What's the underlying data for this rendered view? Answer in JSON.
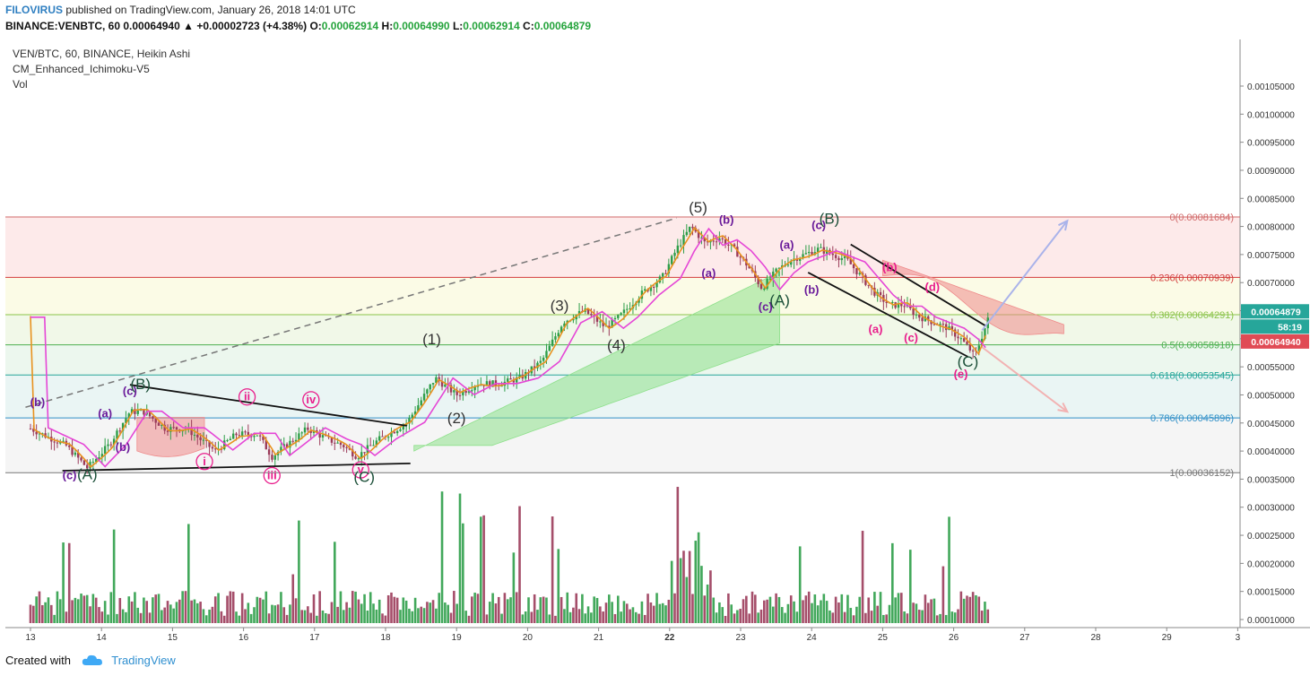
{
  "header": {
    "author": "FILOVIRUS",
    "published": "published on TradingView.com, January 26, 2018 14:01 UTC",
    "symbol": "BINANCE:VENBTC, 60",
    "price": "0.00064940",
    "change": "▲ +0.00002723 (+4.38%)",
    "o_label": "O:",
    "o_value": "0.00062914",
    "h_label": "H:",
    "h_value": "0.00064990",
    "l_label": "L:",
    "l_value": "0.00062914",
    "c_label": "C:",
    "c_value": "0.00064879"
  },
  "legend": {
    "line1": "VEN/BTC, 60, BINANCE, Heikin Ashi",
    "line2": "CM_Enhanced_Ichimoku-V5",
    "line3": "Vol"
  },
  "footer": {
    "created": "Created with",
    "brand": "TradingView"
  },
  "colors": {
    "up": "#2e9e49",
    "down": "#9b3b5a",
    "tenkan": "#e8921f",
    "kijun": "#e546d6",
    "cloud_bull": "#8ee08b",
    "cloud_bear": "#ef8a8a",
    "price_tag": "#e04b55",
    "close_tag": "#26a69a"
  },
  "chart_data": {
    "type": "candlestick",
    "title": "VEN/BTC, 60, BINANCE, Heikin Ashi",
    "x_ticks": [
      "13",
      "14",
      "15",
      "16",
      "17",
      "18",
      "19",
      "20",
      "21",
      "22",
      "23",
      "24",
      "25",
      "26",
      "27",
      "28",
      "29",
      "3"
    ],
    "y_ticks": [
      "0.00105000",
      "0.00100000",
      "0.00095000",
      "0.00090000",
      "0.00085000",
      "0.00080000",
      "0.00075000",
      "0.00070000",
      "0.00065000",
      "0.00060000",
      "0.00055000",
      "0.00050000",
      "0.00045000",
      "0.00040000",
      "0.00035000",
      "0.00030000",
      "0.00025000",
      "0.00020000",
      "0.00015000",
      "0.00010000"
    ],
    "price_path": [
      [
        "13.0",
        0.00044
      ],
      [
        "13.5",
        0.00041
      ],
      [
        "13.8",
        0.00037
      ],
      [
        "14.1",
        0.00041
      ],
      [
        "14.4",
        0.00047
      ],
      [
        "14.6",
        0.00047
      ],
      [
        "14.9",
        0.00044
      ],
      [
        "15.2",
        0.00044
      ],
      [
        "15.6",
        0.0004
      ],
      [
        "15.9",
        0.00043
      ],
      [
        "16.2",
        0.00043
      ],
      [
        "16.4",
        0.00039
      ],
      [
        "16.7",
        0.00042
      ],
      [
        "16.9",
        0.00044
      ],
      [
        "17.2",
        0.00042
      ],
      [
        "17.4",
        0.00041
      ],
      [
        "17.6",
        0.00039
      ],
      [
        "17.9",
        0.00042
      ],
      [
        "18.3",
        0.00045
      ],
      [
        "18.7",
        0.00053
      ],
      [
        "19.0",
        0.0005
      ],
      [
        "19.3",
        0.00052
      ],
      [
        "19.6",
        0.00052
      ],
      [
        "19.9",
        0.00053
      ],
      [
        "20.2",
        0.00056
      ],
      [
        "20.5",
        0.00063
      ],
      [
        "20.8",
        0.00065
      ],
      [
        "21.1",
        0.00062
      ],
      [
        "21.3",
        0.00064
      ],
      [
        "21.6",
        0.00068
      ],
      [
        "21.9",
        0.00071
      ],
      [
        "22.1",
        0.00076
      ],
      [
        "22.3",
        0.0008
      ],
      [
        "22.5",
        0.00077
      ],
      [
        "22.7",
        0.00078
      ],
      [
        "22.9",
        0.00076
      ],
      [
        "23.1",
        0.00073
      ],
      [
        "23.3",
        0.00069
      ],
      [
        "23.5",
        0.00072
      ],
      [
        "23.7",
        0.00074
      ],
      [
        "23.9",
        0.00075
      ],
      [
        "24.1",
        0.00076
      ],
      [
        "24.3",
        0.00075
      ],
      [
        "24.5",
        0.00074
      ],
      [
        "24.7",
        0.00071
      ],
      [
        "24.9",
        0.00068
      ],
      [
        "25.1",
        0.00066
      ],
      [
        "25.3",
        0.00066
      ],
      [
        "25.5",
        0.00064
      ],
      [
        "25.7",
        0.00063
      ],
      [
        "25.9",
        0.00062
      ],
      [
        "26.1",
        0.0006
      ],
      [
        "26.3",
        0.00057
      ],
      [
        "26.5",
        0.00064
      ]
    ],
    "fib_levels": [
      {
        "label": "0(0.00081684)",
        "value": 0.00081684,
        "color": "#d16a6a"
      },
      {
        "label": "0.236(0.00070939)",
        "value": 0.00070939,
        "color": "#d33b3b"
      },
      {
        "label": "0.382(0.00064291)",
        "value": 0.00064291,
        "color": "#8bc34a"
      },
      {
        "label": "0.5(0.00058918)",
        "value": 0.00058918,
        "color": "#4caf50"
      },
      {
        "label": "0.618(0.00053545)",
        "value": 0.00053545,
        "color": "#26a69a"
      },
      {
        "label": "0.786(0.00045896)",
        "value": 0.00045896,
        "color": "#2e8fc7"
      },
      {
        "label": "1(0.00036152)",
        "value": 0.00036152,
        "color": "#777777"
      }
    ],
    "price_tags": [
      {
        "label": "0.00064879",
        "color": "#26a69a"
      },
      {
        "label": "58:19",
        "color": "#26a69a"
      },
      {
        "label": "0.00064940",
        "color": "#e04b55"
      }
    ],
    "wave_labels": [
      {
        "text": "(b)",
        "x": 13.1,
        "y": 0.00048,
        "color": "#6a1b9a"
      },
      {
        "text": "(a)",
        "x": 14.05,
        "y": 0.00046,
        "color": "#6a1b9a"
      },
      {
        "text": "(c)",
        "x": 14.4,
        "y": 0.0005,
        "color": "#6a1b9a"
      },
      {
        "text": "(B)",
        "x": 14.55,
        "y": 0.00051,
        "color": "#1b4f38"
      },
      {
        "text": "(b)",
        "x": 14.3,
        "y": 0.0004,
        "color": "#6a1b9a"
      },
      {
        "text": "(c)",
        "x": 13.55,
        "y": 0.00035,
        "color": "#6a1b9a"
      },
      {
        "text": "(A)",
        "x": 13.8,
        "y": 0.00035,
        "color": "#1b4f38"
      },
      {
        "text": "ii",
        "x": 16.05,
        "y": 0.00049,
        "color": "#e91e8c",
        "circled": true
      },
      {
        "text": "iv",
        "x": 16.95,
        "y": 0.000485,
        "color": "#e91e8c",
        "circled": true
      },
      {
        "text": "i",
        "x": 15.45,
        "y": 0.000375,
        "color": "#e91e8c",
        "circled": true
      },
      {
        "text": "iii",
        "x": 16.4,
        "y": 0.00035,
        "color": "#e91e8c",
        "circled": true
      },
      {
        "text": "v",
        "x": 17.65,
        "y": 0.00036,
        "color": "#e91e8c",
        "circled": true
      },
      {
        "text": "(C)",
        "x": 17.7,
        "y": 0.000345,
        "color": "#1b4f38"
      },
      {
        "text": "(1)",
        "x": 18.65,
        "y": 0.00059,
        "color": "#333333"
      },
      {
        "text": "(2)",
        "x": 19.0,
        "y": 0.00045,
        "color": "#333333"
      },
      {
        "text": "(3)",
        "x": 20.45,
        "y": 0.00065,
        "color": "#333333"
      },
      {
        "text": "(4)",
        "x": 21.25,
        "y": 0.00058,
        "color": "#333333"
      },
      {
        "text": "(5)",
        "x": 22.4,
        "y": 0.000825,
        "color": "#333333"
      },
      {
        "text": "(b)",
        "x": 22.8,
        "y": 0.000805,
        "color": "#6a1b9a"
      },
      {
        "text": "(a)",
        "x": 22.55,
        "y": 0.00071,
        "color": "#6a1b9a"
      },
      {
        "text": "(a)",
        "x": 23.65,
        "y": 0.00076,
        "color": "#6a1b9a"
      },
      {
        "text": "(c)",
        "x": 24.1,
        "y": 0.000795,
        "color": "#6a1b9a"
      },
      {
        "text": "(B)",
        "x": 24.25,
        "y": 0.000805,
        "color": "#1b4f38"
      },
      {
        "text": "(b)",
        "x": 24.0,
        "y": 0.00068,
        "color": "#6a1b9a"
      },
      {
        "text": "(c)",
        "x": 23.35,
        "y": 0.00065,
        "color": "#6a1b9a"
      },
      {
        "text": "(A)",
        "x": 23.55,
        "y": 0.00066,
        "color": "#1b4f38"
      },
      {
        "text": "(b)",
        "x": 25.1,
        "y": 0.00072,
        "color": "#e91e8c"
      },
      {
        "text": "(d)",
        "x": 25.7,
        "y": 0.000685,
        "color": "#e91e8c"
      },
      {
        "text": "(a)",
        "x": 24.9,
        "y": 0.00061,
        "color": "#e91e8c"
      },
      {
        "text": "(c)",
        "x": 25.4,
        "y": 0.000595,
        "color": "#e91e8c"
      },
      {
        "text": "(C)",
        "x": 26.2,
        "y": 0.00055,
        "color": "#1b4f38"
      },
      {
        "text": "(e)",
        "x": 26.1,
        "y": 0.00053,
        "color": "#e91e8c"
      }
    ],
    "volume_scale_note": "volume bars shown in lower pane",
    "x_range": [
      12.9,
      30.0
    ],
    "y_range": [
      9.5e-05,
      0.00108
    ]
  }
}
